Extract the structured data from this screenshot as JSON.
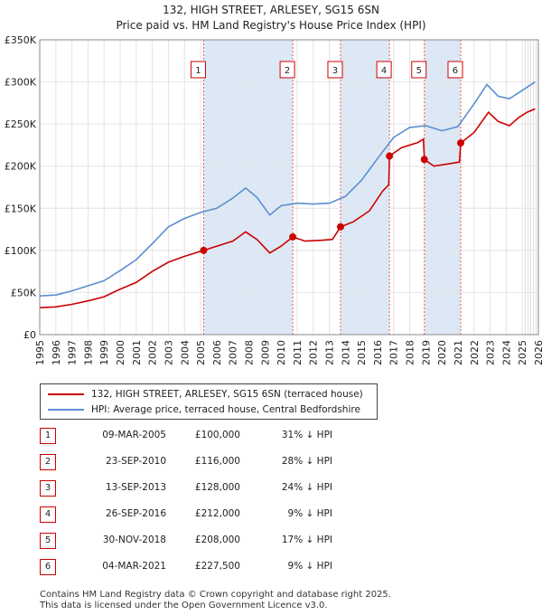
{
  "title_line1": "132, HIGH STREET, ARLESEY, SG15 6SN",
  "title_line2": "Price paid vs. HM Land Registry's House Price Index (HPI)",
  "colors": {
    "property": "#cc0000",
    "hpi": "#5b8fd0",
    "shade": "#dde8f6",
    "vline": "#e06060"
  },
  "chart_data": {
    "type": "line",
    "title": "132, HIGH STREET, ARLESEY, SG15 6SN — Price paid vs. HM Land Registry's House Price Index (HPI)",
    "xlim": [
      1995,
      2026
    ],
    "ylim": [
      0,
      350000
    ],
    "y_ticks": [
      0,
      50000,
      100000,
      150000,
      200000,
      250000,
      300000,
      350000
    ],
    "y_tick_labels": [
      "£0",
      "£50K",
      "£100K",
      "£150K",
      "£200K",
      "£250K",
      "£300K",
      "£350K"
    ],
    "x_ticks": [
      1995,
      1996,
      1997,
      1998,
      1999,
      2000,
      2001,
      2002,
      2003,
      2004,
      2005,
      2006,
      2007,
      2008,
      2009,
      2010,
      2011,
      2012,
      2013,
      2014,
      2015,
      2016,
      2017,
      2018,
      2019,
      2020,
      2021,
      2022,
      2023,
      2024,
      2025,
      2026
    ],
    "grid": true,
    "shaded_periods": [
      [
        2005.19,
        2010.73
      ],
      [
        2013.7,
        2016.74
      ],
      [
        2018.91,
        2021.17
      ]
    ],
    "forecast_start": 2025.2,
    "series": [
      {
        "name": "132, HIGH STREET, ARLESEY, SG15 6SN (terraced house)",
        "color": "#cc0000",
        "points": [
          [
            1995.0,
            32000
          ],
          [
            1996.0,
            33000
          ],
          [
            1997.0,
            36000
          ],
          [
            1998.0,
            40000
          ],
          [
            1999.0,
            45000
          ],
          [
            2000.0,
            54000
          ],
          [
            2001.0,
            62000
          ],
          [
            2002.0,
            75000
          ],
          [
            2003.0,
            86000
          ],
          [
            2004.0,
            93000
          ],
          [
            2005.19,
            100000
          ],
          [
            2006.0,
            105000
          ],
          [
            2007.0,
            111000
          ],
          [
            2007.8,
            122000
          ],
          [
            2008.5,
            113000
          ],
          [
            2009.3,
            97000
          ],
          [
            2010.0,
            105000
          ],
          [
            2010.73,
            116000
          ],
          [
            2011.5,
            111000
          ],
          [
            2012.5,
            112000
          ],
          [
            2013.2,
            113000
          ],
          [
            2013.7,
            128000
          ],
          [
            2014.5,
            134000
          ],
          [
            2015.5,
            147000
          ],
          [
            2016.3,
            170000
          ],
          [
            2016.7,
            178000
          ],
          [
            2016.74,
            212000
          ],
          [
            2017.5,
            222000
          ],
          [
            2018.5,
            228000
          ],
          [
            2018.85,
            232000
          ],
          [
            2018.91,
            208000
          ],
          [
            2019.5,
            200000
          ],
          [
            2020.5,
            203000
          ],
          [
            2021.1,
            205000
          ],
          [
            2021.17,
            227500
          ],
          [
            2022.0,
            240000
          ],
          [
            2022.9,
            264000
          ],
          [
            2023.5,
            253000
          ],
          [
            2024.2,
            248000
          ],
          [
            2024.8,
            258000
          ],
          [
            2025.3,
            264000
          ],
          [
            2025.8,
            268000
          ]
        ]
      },
      {
        "name": "HPI: Average price, terraced house, Central Bedfordshire",
        "color": "#5b8fd0",
        "points": [
          [
            1995.0,
            46000
          ],
          [
            1996.0,
            47000
          ],
          [
            1997.0,
            52000
          ],
          [
            1998.0,
            58000
          ],
          [
            1999.0,
            64000
          ],
          [
            2000.0,
            76000
          ],
          [
            2001.0,
            89000
          ],
          [
            2002.0,
            108000
          ],
          [
            2003.0,
            128000
          ],
          [
            2004.0,
            138000
          ],
          [
            2005.0,
            145000
          ],
          [
            2006.0,
            150000
          ],
          [
            2007.0,
            162000
          ],
          [
            2007.8,
            174000
          ],
          [
            2008.5,
            163000
          ],
          [
            2009.3,
            142000
          ],
          [
            2010.0,
            153000
          ],
          [
            2011.0,
            156000
          ],
          [
            2012.0,
            155000
          ],
          [
            2013.0,
            156000
          ],
          [
            2014.0,
            164000
          ],
          [
            2015.0,
            183000
          ],
          [
            2016.0,
            209000
          ],
          [
            2017.0,
            234000
          ],
          [
            2018.0,
            246000
          ],
          [
            2019.0,
            248000
          ],
          [
            2020.0,
            242000
          ],
          [
            2021.0,
            247000
          ],
          [
            2022.0,
            274000
          ],
          [
            2022.8,
            297000
          ],
          [
            2023.5,
            283000
          ],
          [
            2024.2,
            280000
          ],
          [
            2025.0,
            290000
          ],
          [
            2025.8,
            300000
          ]
        ]
      }
    ],
    "sale_points": [
      [
        2005.19,
        100000
      ],
      [
        2010.73,
        116000
      ],
      [
        2013.7,
        128000
      ],
      [
        2016.74,
        212000
      ],
      [
        2018.91,
        208000
      ],
      [
        2021.17,
        227500
      ]
    ],
    "markers": [
      {
        "label": "1",
        "x": 2005.19
      },
      {
        "label": "2",
        "x": 2010.73
      },
      {
        "label": "3",
        "x": 2013.7
      },
      {
        "label": "4",
        "x": 2016.74
      },
      {
        "label": "5",
        "x": 2018.91
      },
      {
        "label": "6",
        "x": 2021.17
      }
    ]
  },
  "legend": {
    "property_label": "132, HIGH STREET, ARLESEY, SG15 6SN (terraced house)",
    "hpi_label": "HPI: Average price, terraced house, Central Bedfordshire"
  },
  "sales": [
    {
      "num": "1",
      "date": "09-MAR-2005",
      "price": "£100,000",
      "hpi": "31% ↓ HPI"
    },
    {
      "num": "2",
      "date": "23-SEP-2010",
      "price": "£116,000",
      "hpi": "28% ↓ HPI"
    },
    {
      "num": "3",
      "date": "13-SEP-2013",
      "price": "£128,000",
      "hpi": "24% ↓ HPI"
    },
    {
      "num": "4",
      "date": "26-SEP-2016",
      "price": "£212,000",
      "hpi": "9% ↓ HPI"
    },
    {
      "num": "5",
      "date": "30-NOV-2018",
      "price": "£208,000",
      "hpi": "17% ↓ HPI"
    },
    {
      "num": "6",
      "date": "04-MAR-2021",
      "price": "£227,500",
      "hpi": "9% ↓ HPI"
    }
  ],
  "footer_line1": "Contains HM Land Registry data © Crown copyright and database right 2025.",
  "footer_line2": "This data is licensed under the Open Government Licence v3.0."
}
